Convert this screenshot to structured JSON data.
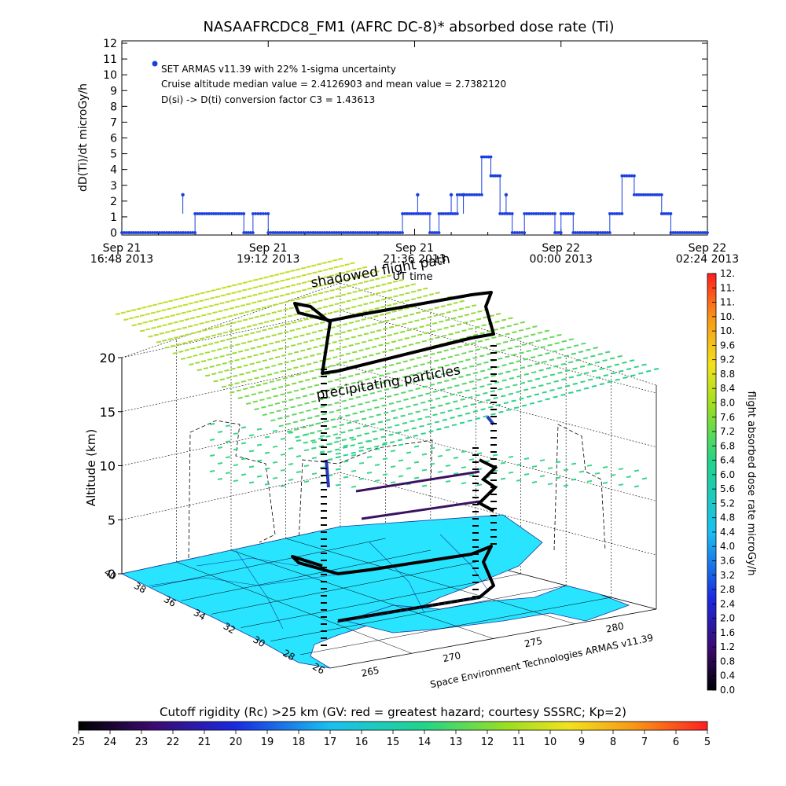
{
  "top_chart": {
    "title": "NASAAFRCDC8_FM1 (AFRC DC-8)* absorbed dose rate (Ti)",
    "ylabel": "dD(Ti)/dt microGy/h",
    "xlabel": "UT time",
    "annotations": [
      "SET ARMAS v11.39 with 22% 1-sigma uncertainty",
      "Cruise altitude median value = 2.4126903 and mean value = 2.7382120",
      "D(si) -> D(ti) conversion factor C3 = 1.43613"
    ],
    "x_ticks": [
      {
        "line1": "Sep 21",
        "line2": "16:48 2013"
      },
      {
        "line1": "Sep 21",
        "line2": "19:12 2013"
      },
      {
        "line1": "Sep 21",
        "line2": "21:36 2013"
      },
      {
        "line1": "Sep 22",
        "line2": "00:00 2013"
      },
      {
        "line1": "Sep 22",
        "line2": "02:24 2013"
      }
    ],
    "marker_color": "#1a3fe0"
  },
  "chart_data": [
    {
      "type": "scatter",
      "title": "NASAAFRCDC8_FM1 (AFRC DC-8)* absorbed dose rate (Ti)",
      "xlabel": "UT time",
      "ylabel": "dD(Ti)/dt microGy/h",
      "x_unit": "hours since Sep 21 16:48 2013 UT",
      "xlim": [
        0,
        9.6
      ],
      "ylim": [
        0,
        12
      ],
      "y_ticks": [
        0,
        1,
        2,
        3,
        4,
        5,
        6,
        7,
        8,
        9,
        10,
        11,
        12
      ],
      "segments": [
        {
          "x": [
            0.0,
            1.2
          ],
          "y": 0
        },
        {
          "x": [
            1.2,
            2.0
          ],
          "y": 1.2
        },
        {
          "x": [
            2.0,
            2.15
          ],
          "y": 0
        },
        {
          "x": [
            2.15,
            2.4
          ],
          "y": 1.2
        },
        {
          "x": [
            2.4,
            4.6
          ],
          "y": 0
        },
        {
          "x": [
            4.6,
            5.05
          ],
          "y": 1.2
        },
        {
          "x": [
            5.05,
            5.2
          ],
          "y": 0
        },
        {
          "x": [
            5.2,
            5.5
          ],
          "y": 1.2
        },
        {
          "x": [
            5.5,
            5.9
          ],
          "y": 2.4
        },
        {
          "x": [
            5.9,
            6.05
          ],
          "y": 4.8
        },
        {
          "x": [
            6.05,
            6.2
          ],
          "y": 3.6
        },
        {
          "x": [
            6.2,
            6.4
          ],
          "y": 1.2
        },
        {
          "x": [
            6.4,
            6.6
          ],
          "y": 0
        },
        {
          "x": [
            6.6,
            7.1
          ],
          "y": 1.2
        },
        {
          "x": [
            7.1,
            7.2
          ],
          "y": 0
        },
        {
          "x": [
            7.2,
            7.4
          ],
          "y": 1.2
        },
        {
          "x": [
            7.4,
            8.0
          ],
          "y": 0
        },
        {
          "x": [
            8.0,
            8.2
          ],
          "y": 1.2
        },
        {
          "x": [
            8.2,
            8.4
          ],
          "y": 3.6
        },
        {
          "x": [
            8.4,
            8.85
          ],
          "y": 2.4
        },
        {
          "x": [
            8.85,
            9.0
          ],
          "y": 1.2
        },
        {
          "x": [
            9.0,
            9.6
          ],
          "y": 0
        }
      ],
      "spikes": [
        {
          "x": 1.0,
          "y": 2.4
        },
        {
          "x": 4.85,
          "y": 2.4
        },
        {
          "x": 5.6,
          "y": 2.4
        },
        {
          "x": 6.3,
          "y": 2.4
        },
        {
          "x": 5.4,
          "y": 2.4
        }
      ]
    },
    {
      "type": "scatter",
      "title": "",
      "zlabel": "Altitude (km)",
      "zlim": [
        0,
        20
      ],
      "z_ticks": [
        0,
        5,
        10,
        15,
        20
      ],
      "latitude_ticks": [
        "40",
        "38",
        "36",
        "34",
        "32",
        "30",
        "28",
        "26"
      ],
      "longitude_ticks": [
        "265",
        "270",
        "275",
        "280"
      ],
      "annotations": [
        "shadowed flight path",
        "precipitating particles"
      ],
      "credit": "Space Environment Technologies ARMAS v11.39",
      "colorbar": {
        "label": "flight absorbed dose rate microGy/h",
        "ticks": [
          "0.0",
          "0.4",
          "0.8",
          "1.2",
          "1.6",
          "2.0",
          "2.4",
          "2.8",
          "3.2",
          "3.6",
          "4.0",
          "4.4",
          "4.8",
          "5.2",
          "5.6",
          "6.0",
          "6.4",
          "6.8",
          "7.2",
          "7.6",
          "8.0",
          "8.4",
          "8.8",
          "9.2",
          "9.6",
          "10.",
          "10.",
          "11.",
          "11.",
          "12."
        ]
      }
    },
    {
      "type": "heatmap",
      "title": "Cutoff rigidity (Rc) >25 km (GV: red = greatest hazard; courtesy SSSRC; Kp=2)",
      "ticks": [
        "25",
        "24",
        "23",
        "22",
        "21",
        "20",
        "19",
        "18",
        "17",
        "16",
        "15",
        "14",
        "13",
        "12",
        "11",
        "10",
        "9",
        "8",
        "7",
        "6",
        "5"
      ]
    }
  ]
}
